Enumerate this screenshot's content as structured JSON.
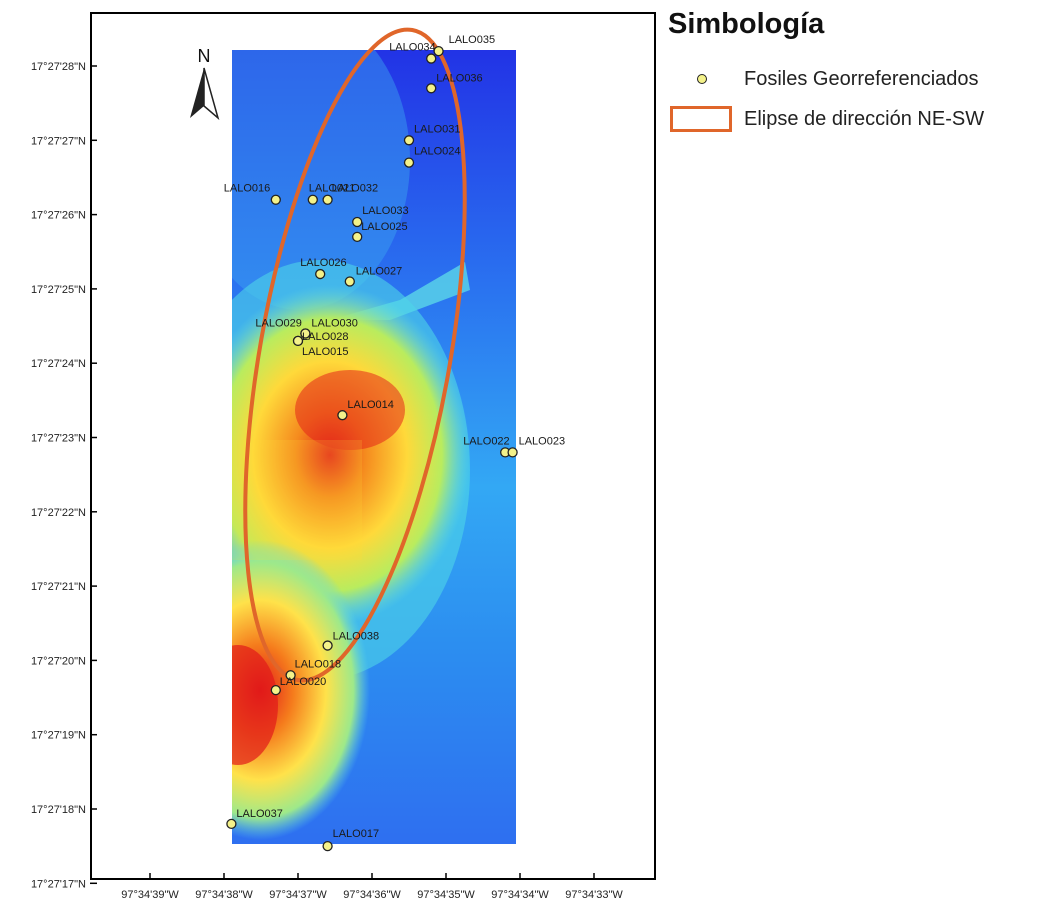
{
  "legend": {
    "title": "Simbología",
    "items": [
      {
        "label": "Fosiles Georreferenciados",
        "symbol": "point",
        "color": "#f4f28a"
      },
      {
        "label": "Elipse de dirección NE-SW",
        "symbol": "ellipse",
        "color": "#e0662a"
      }
    ]
  },
  "north_arrow": {
    "label": "N"
  },
  "axes": {
    "lat_labels": [
      "17°27'28\"N",
      "17°27'27\"N",
      "17°27'26\"N",
      "17°27'25\"N",
      "17°27'24\"N",
      "17°27'23\"N",
      "17°27'22\"N",
      "17°27'21\"N",
      "17°27'20\"N",
      "17°27'19\"N",
      "17°27'18\"N",
      "17°27'17\"N"
    ],
    "lon_labels": [
      "97°34'39\"W",
      "97°34'38\"W",
      "97°34'37\"W",
      "97°34'36\"W",
      "97°34'35\"W",
      "97°34'34\"W",
      "97°34'33\"W"
    ]
  },
  "colors": {
    "high": "#e81e1e",
    "mid": "#ffe040",
    "low": "#1e2fe0",
    "ellipse": "#e0662a"
  },
  "chart_data": {
    "type": "scatter",
    "x_unit": "longitude seconds past 97°34' W",
    "y_unit": "latitude seconds past 17°27' N",
    "points": [
      {
        "name": "LALO034",
        "x": 35.2,
        "y": 28.1
      },
      {
        "name": "LALO035",
        "x": 35.1,
        "y": 28.2
      },
      {
        "name": "LALO036",
        "x": 35.2,
        "y": 27.7
      },
      {
        "name": "LALO031",
        "x": 35.5,
        "y": 27.0
      },
      {
        "name": "LALO024",
        "x": 35.5,
        "y": 26.7
      },
      {
        "name": "LALO016",
        "x": 37.3,
        "y": 26.2
      },
      {
        "name": "LALO021",
        "x": 36.8,
        "y": 26.2
      },
      {
        "name": "LALO032",
        "x": 36.6,
        "y": 26.2
      },
      {
        "name": "LALO033",
        "x": 36.2,
        "y": 25.9
      },
      {
        "name": "LALO025",
        "x": 36.2,
        "y": 25.7
      },
      {
        "name": "LALO026",
        "x": 36.7,
        "y": 25.2
      },
      {
        "name": "LALO027",
        "x": 36.3,
        "y": 25.1
      },
      {
        "name": "LALO029",
        "x": 36.9,
        "y": 24.4
      },
      {
        "name": "LALO030",
        "x": 36.9,
        "y": 24.4
      },
      {
        "name": "LALO028",
        "x": 37.0,
        "y": 24.3
      },
      {
        "name": "LALO015",
        "x": 37.0,
        "y": 24.3
      },
      {
        "name": "LALO014",
        "x": 36.4,
        "y": 23.3
      },
      {
        "name": "LALO022",
        "x": 34.2,
        "y": 22.8
      },
      {
        "name": "LALO023",
        "x": 34.1,
        "y": 22.8
      },
      {
        "name": "LALO038",
        "x": 36.6,
        "y": 20.2
      },
      {
        "name": "LALO018",
        "x": 37.1,
        "y": 19.8
      },
      {
        "name": "LALO020",
        "x": 37.3,
        "y": 19.6
      },
      {
        "name": "LALO037",
        "x": 37.9,
        "y": 17.8
      },
      {
        "name": "LALO017",
        "x": 36.6,
        "y": 17.5
      }
    ]
  }
}
